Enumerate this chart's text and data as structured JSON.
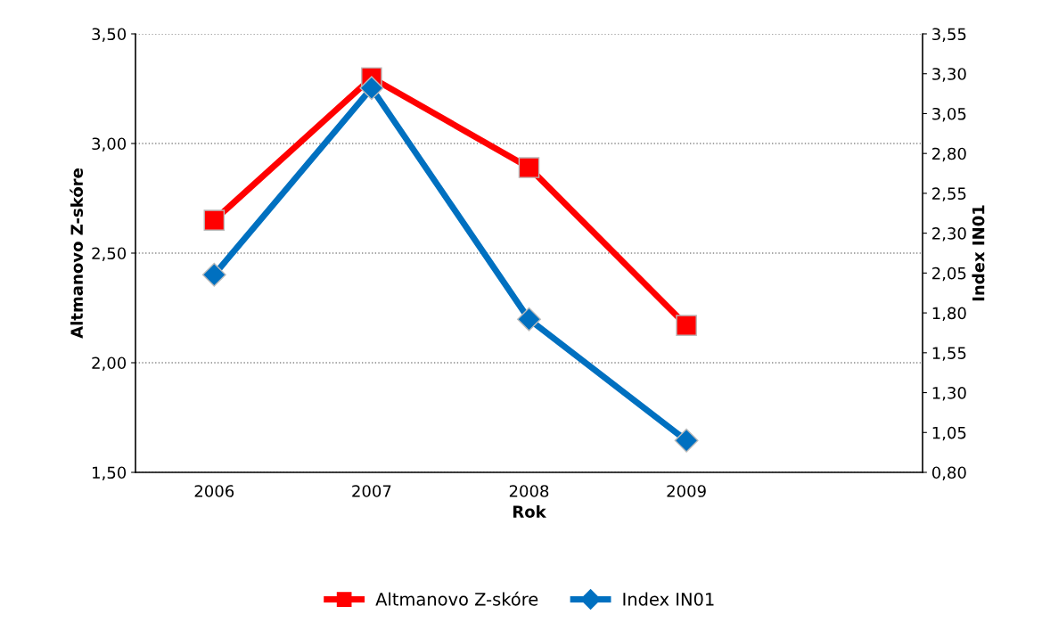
{
  "chart_data": {
    "type": "line",
    "xlabel": "Rok",
    "ylabel": "Altmanovo Z-skóre",
    "y2label": "Index IN01",
    "categories": [
      "2006",
      "2007",
      "2008",
      "2009",
      null
    ],
    "series": [
      {
        "name": "Altmanovo Z-skóre",
        "color": "#ff0000",
        "marker": "square",
        "values": [
          2.65,
          3.3,
          2.89,
          2.17,
          null
        ]
      },
      {
        "name": "Index IN01",
        "color": "#0070c0",
        "marker": "diamond",
        "axis": "y2",
        "values": [
          2.04,
          3.21,
          1.76,
          1.0,
          null
        ]
      }
    ],
    "ylim": [
      1.5,
      3.5
    ],
    "yticks": [
      {
        "value": 1.5,
        "label": "1,50"
      },
      {
        "value": 2.0,
        "label": "2,00"
      },
      {
        "value": 2.5,
        "label": "2,50"
      },
      {
        "value": 3.0,
        "label": "3,00"
      },
      {
        "value": 3.5,
        "label": "3,50"
      }
    ],
    "y2lim": [
      0.8,
      3.55
    ],
    "y2ticks": [
      {
        "value": 0.8,
        "label": "0,80"
      },
      {
        "value": 1.05,
        "label": "1,05"
      },
      {
        "value": 1.3,
        "label": "1,30"
      },
      {
        "value": 1.55,
        "label": "1,55"
      },
      {
        "value": 1.8,
        "label": "1,80"
      },
      {
        "value": 2.05,
        "label": "2,05"
      },
      {
        "value": 2.3,
        "label": "2,30"
      },
      {
        "value": 2.55,
        "label": "2,55"
      },
      {
        "value": 2.8,
        "label": "2,80"
      },
      {
        "value": 3.05,
        "label": "3,05"
      },
      {
        "value": 3.3,
        "label": "3,30"
      },
      {
        "value": 3.55,
        "label": "3,55"
      }
    ],
    "grid": "y",
    "legend": "bottom",
    "line_style": "solid"
  }
}
